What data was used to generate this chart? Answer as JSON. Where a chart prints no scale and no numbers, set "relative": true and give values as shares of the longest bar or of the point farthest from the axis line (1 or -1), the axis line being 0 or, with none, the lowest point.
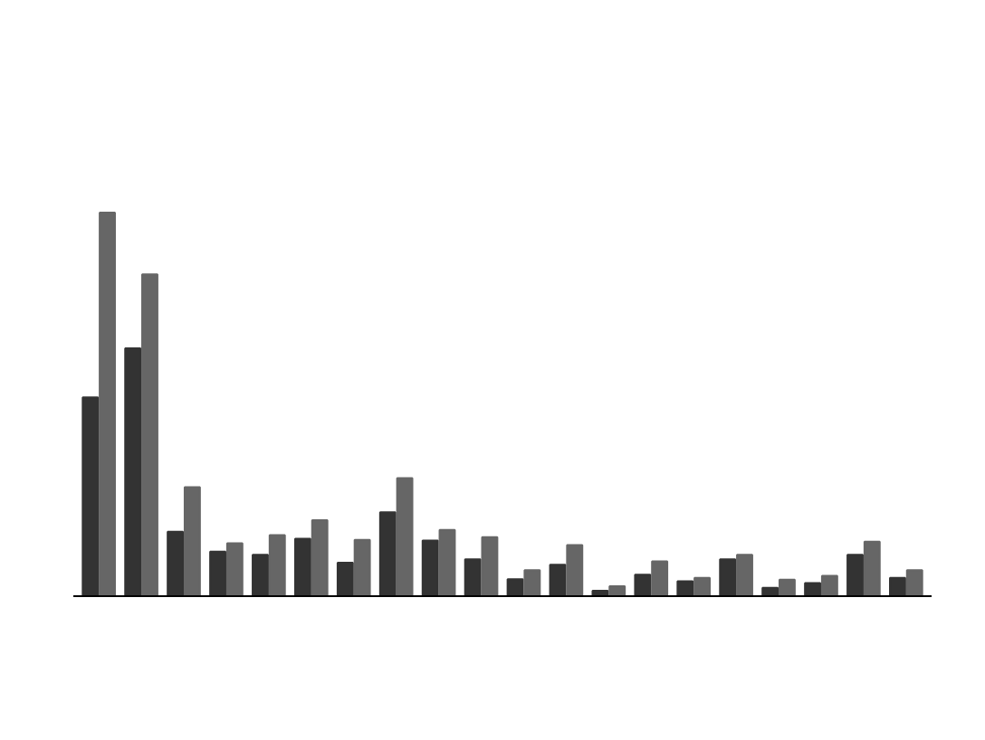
{
  "chart_data": {
    "type": "bar",
    "relative": true,
    "categories": [
      null,
      null,
      null,
      null,
      null,
      null,
      null,
      null,
      null,
      null,
      null,
      null,
      null,
      null,
      null,
      null,
      null,
      null,
      null,
      null
    ],
    "series": [
      {
        "color": "#333333",
        "values": [
          0.518,
          0.646,
          0.168,
          0.116,
          0.108,
          0.15,
          0.087,
          0.219,
          0.145,
          0.096,
          0.044,
          0.082,
          0.014,
          0.056,
          0.039,
          0.096,
          0.022,
          0.034,
          0.108,
          0.048
        ]
      },
      {
        "color": "#666666",
        "values": [
          1,
          0.839,
          0.284,
          0.138,
          0.159,
          0.198,
          0.147,
          0.308,
          0.173,
          0.154,
          0.068,
          0.133,
          0.026,
          0.091,
          0.048,
          0.108,
          0.043,
          0.053,
          0.142,
          0.068
        ]
      }
    ]
  }
}
